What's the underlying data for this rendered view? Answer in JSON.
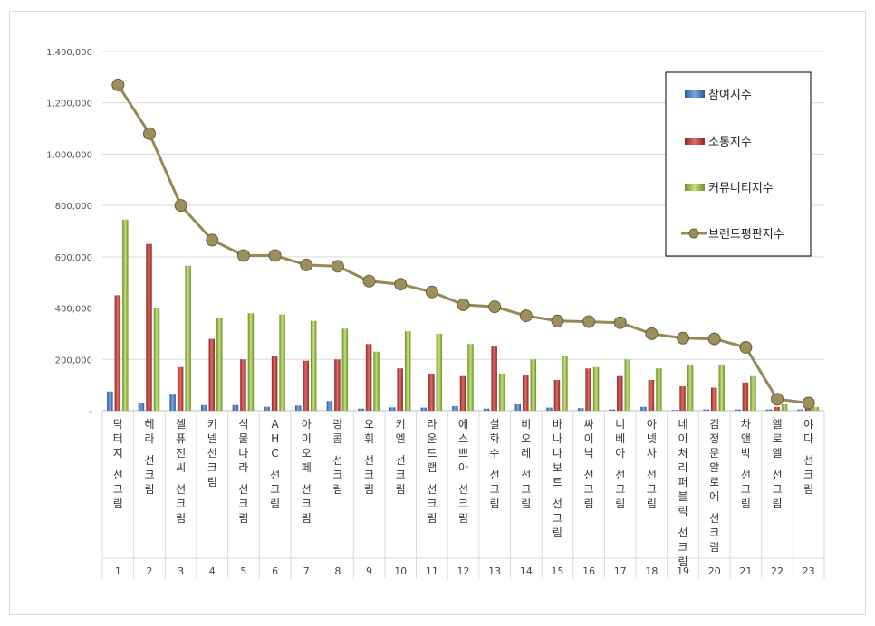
{
  "chart_data": {
    "type": "bar",
    "title": "",
    "xlabel": "",
    "ylabel": "",
    "ylim": [
      0,
      1400000
    ],
    "yticks": [
      0,
      200000,
      400000,
      600000,
      800000,
      1000000,
      1200000,
      1400000
    ],
    "ytick_labels": [
      "-",
      "200,000",
      "400,000",
      "600,000",
      "800,000",
      "1,000,000",
      "1,200,000",
      "1,400,000"
    ],
    "grid": true,
    "legend_position": "top-right",
    "ranks": [
      "1",
      "2",
      "3",
      "4",
      "5",
      "6",
      "7",
      "8",
      "9",
      "10",
      "11",
      "12",
      "13",
      "14",
      "15",
      "16",
      "17",
      "18",
      "19",
      "20",
      "21",
      "22",
      "23"
    ],
    "categories": [
      "닥터지 선크림",
      "헤라 선크림",
      "셀퓨전씨 선크림",
      "키넬선크림",
      "식물나라 선크림",
      "AHC 선크림",
      "아이오페 선크림",
      "랑콤 선크림",
      "오휘 선크림",
      "키엘 선크림",
      "라운드랩 선크림",
      "에스쁘아 선크림",
      "설화수 선크림",
      "비오레 선크림",
      "바나나보트 선크림",
      "싸이닉 선크림",
      "니베아 선크림",
      "아넷사 선크림",
      "네이처리퍼블릭 선크림",
      "김정문알로에 선크림",
      "차앤박 선크림",
      "엘로엘 선크림",
      "야다 선크림"
    ],
    "series": [
      {
        "name": "참여지수",
        "kind": "bar",
        "color": "#4f81bd",
        "values": [
          75000,
          32000,
          63000,
          22000,
          22000,
          15000,
          20000,
          38000,
          8000,
          13000,
          12000,
          18000,
          8000,
          25000,
          12000,
          10000,
          5000,
          15000,
          3000,
          5000,
          5000,
          5000,
          5000
        ]
      },
      {
        "name": "소통지수",
        "kind": "bar",
        "color": "#c0504d",
        "values": [
          450000,
          650000,
          170000,
          280000,
          200000,
          215000,
          195000,
          200000,
          260000,
          165000,
          145000,
          135000,
          250000,
          140000,
          120000,
          165000,
          135000,
          120000,
          95000,
          90000,
          110000,
          15000,
          10000
        ]
      },
      {
        "name": "커뮤니티지수",
        "kind": "bar",
        "color": "#9bbb59",
        "values": [
          745000,
          400000,
          565000,
          360000,
          380000,
          375000,
          350000,
          320000,
          230000,
          310000,
          300000,
          260000,
          145000,
          200000,
          215000,
          170000,
          200000,
          165000,
          180000,
          180000,
          135000,
          25000,
          15000
        ]
      },
      {
        "name": "브랜드평판지수",
        "kind": "line",
        "color": "#938953",
        "values": [
          1270000,
          1080000,
          800000,
          665000,
          605000,
          605000,
          568000,
          563000,
          505000,
          493000,
          463000,
          413000,
          405000,
          370000,
          350000,
          347000,
          343000,
          300000,
          283000,
          280000,
          247000,
          45000,
          30000
        ]
      }
    ]
  }
}
